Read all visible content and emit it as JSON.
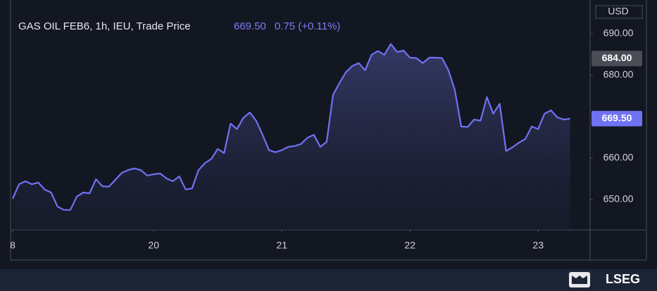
{
  "chart_data": {
    "type": "line",
    "title": "GAS OIL FEB6, 1h, IEU, Trade Price",
    "price_label": "669.50",
    "change_label": "0.75 (+0.11%)",
    "currency": "USD",
    "brand": "LSEG",
    "categories": [
      "8",
      null,
      null,
      null,
      null,
      null,
      null,
      null,
      null,
      null,
      null,
      null,
      null,
      null,
      null,
      null,
      null,
      null,
      null,
      null,
      null,
      null,
      "20",
      null,
      null,
      null,
      null,
      null,
      null,
      null,
      null,
      null,
      null,
      null,
      null,
      null,
      null,
      null,
      null,
      null,
      null,
      null,
      "21",
      null,
      null,
      null,
      null,
      null,
      null,
      null,
      null,
      null,
      null,
      null,
      null,
      null,
      null,
      null,
      null,
      null,
      null,
      null,
      "22",
      null,
      null,
      null,
      null,
      null,
      null,
      null,
      null,
      null,
      null,
      null,
      null,
      null,
      null,
      null,
      null,
      null,
      null,
      null,
      "23",
      null,
      null,
      null,
      null,
      null
    ],
    "series": [
      {
        "name": "GAS OIL FEB6",
        "color": "#6f72f2",
        "values": [
          650.2,
          653.7,
          654.4,
          653.7,
          654.1,
          652.4,
          651.7,
          648.3,
          647.5,
          647.5,
          650.7,
          651.7,
          651.5,
          654.9,
          653.2,
          653.1,
          654.7,
          656.4,
          657.1,
          657.5,
          657.1,
          655.8,
          656.1,
          656.3,
          655.1,
          654.4,
          655.6,
          652.4,
          652.7,
          657.1,
          658.8,
          659.8,
          662.2,
          661.2,
          668.3,
          667.0,
          669.7,
          671.0,
          669.0,
          665.6,
          661.9,
          661.4,
          661.9,
          662.7,
          662.9,
          663.4,
          664.9,
          665.6,
          662.7,
          663.9,
          675.3,
          678.1,
          680.7,
          682.2,
          682.9,
          681.2,
          684.9,
          685.8,
          684.9,
          687.5,
          685.6,
          685.9,
          684.2,
          684.1,
          682.9,
          684.2,
          684.2,
          684.1,
          681.2,
          676.4,
          667.6,
          667.5,
          669.3,
          669.0,
          674.7,
          670.7,
          673.1,
          661.7,
          662.6,
          663.7,
          664.6,
          667.6,
          667.0,
          670.7,
          671.5,
          669.8,
          669.3,
          669.5
        ]
      }
    ],
    "ylim": [
      642.7,
      698.1
    ],
    "yticks": [
      {
        "value": 650,
        "label": "650.00"
      },
      {
        "value": 660,
        "label": "660.00"
      },
      {
        "value": 680,
        "label": "680.00"
      },
      {
        "value": 690,
        "label": "690.00"
      }
    ],
    "price_markers": [
      {
        "value": 684,
        "label": "684.00",
        "color": "#4a4d55"
      },
      {
        "value": 669.5,
        "label": "669.50",
        "color": "#6f72f2"
      }
    ]
  }
}
